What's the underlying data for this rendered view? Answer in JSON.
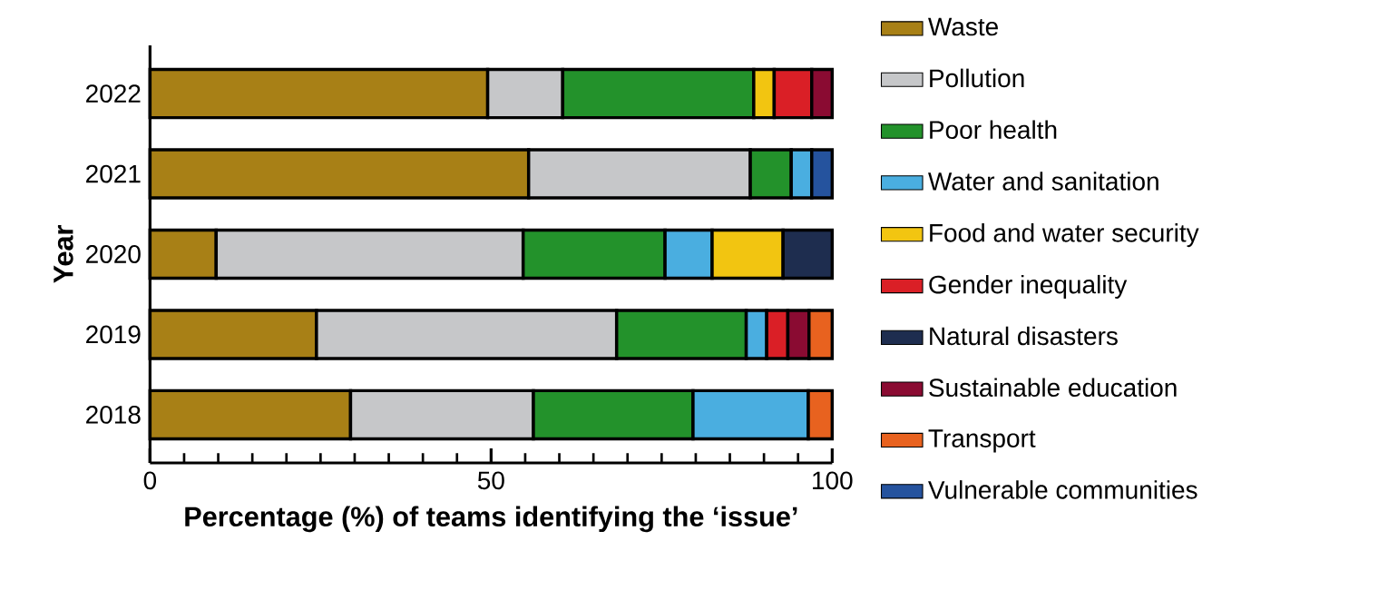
{
  "chart_data": {
    "type": "bar",
    "orientation": "horizontal",
    "stacked": true,
    "xlabel": "Percentage (%) of teams identifying the ‘issue’",
    "ylabel": "Year",
    "categories": [
      "2022",
      "2021",
      "2020",
      "2019",
      "2018"
    ],
    "xlim": [
      0,
      100
    ],
    "xticks": [
      0,
      50,
      100
    ],
    "legend": "right",
    "series": [
      {
        "name": "Waste",
        "color": "#a88016",
        "values": [
          49.5,
          55.5,
          9.7,
          24.4,
          29.4
        ]
      },
      {
        "name": "Pollution",
        "color": "#c6c7c9",
        "values": [
          11,
          32.5,
          45,
          44,
          26.8
        ]
      },
      {
        "name": "Poor health",
        "color": "#23922b",
        "values": [
          28,
          6,
          20.8,
          19,
          23.4
        ]
      },
      {
        "name": "Water and sanitation",
        "color": "#4aaee0",
        "values": [
          null,
          3,
          6.9,
          3,
          16.9
        ]
      },
      {
        "name": "Food and water security",
        "color": "#f2c511",
        "values": [
          3,
          null,
          10.4,
          null,
          null
        ]
      },
      {
        "name": "Gender inequality",
        "color": "#da1f26",
        "values": [
          5.5,
          null,
          null,
          3.1,
          null
        ]
      },
      {
        "name": "Natural disasters",
        "color": "#1e2d4f",
        "values": [
          null,
          null,
          7.2,
          null,
          null
        ]
      },
      {
        "name": "Sustainable education",
        "color": "#8a0b32",
        "values": [
          3,
          null,
          null,
          3.1,
          null
        ]
      },
      {
        "name": "Transport",
        "color": "#e8621f",
        "values": [
          null,
          null,
          null,
          3.4,
          3.5
        ]
      },
      {
        "name": "Vulnerable communities",
        "color": "#25539e",
        "values": [
          null,
          3,
          null,
          null,
          null
        ]
      }
    ]
  }
}
